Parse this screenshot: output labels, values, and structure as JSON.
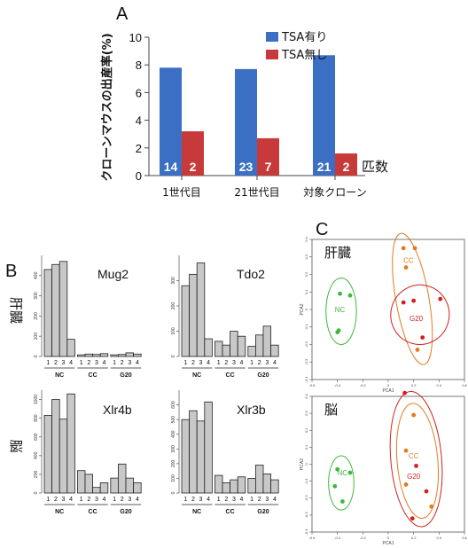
{
  "panel_labels": {
    "a": "A",
    "b": "B",
    "c": "C"
  },
  "row_labels": {
    "liver": "肝臓",
    "brain": "脳"
  },
  "chart_data": [
    {
      "id": "A",
      "type": "bar",
      "ylabel": "クローンマウスの出産率(%)",
      "ylim": [
        0,
        10
      ],
      "yticks": [
        "0",
        "2",
        "4",
        "6",
        "8",
        "10"
      ],
      "categories": [
        "1世代目",
        "21世代目",
        "対象クローン"
      ],
      "series": [
        {
          "name": "TSA有り",
          "color": "#3a6fc4",
          "values": [
            7.8,
            7.7,
            8.7
          ],
          "counts": [
            "14",
            "23",
            "21"
          ]
        },
        {
          "name": "TSA無し",
          "color": "#c83a3a",
          "values": [
            3.2,
            2.7,
            1.6
          ],
          "counts": [
            "2",
            "7",
            "2"
          ]
        }
      ],
      "count_label": "匹数"
    },
    {
      "id": "B",
      "type": "bar",
      "bar_color": "#c8c8c8",
      "group_labels": [
        "NC",
        "CC",
        "G20"
      ],
      "bar_ticks": [
        "1",
        "2",
        "3",
        "4"
      ],
      "panels": [
        {
          "gene": "Mug2",
          "ylim": [
            0,
            500
          ],
          "yticks": [
            "0",
            "100",
            "200",
            "300",
            "400"
          ],
          "values": [
            430,
            455,
            470,
            85,
            8,
            12,
            10,
            14,
            8,
            10,
            18,
            12
          ]
        },
        {
          "gene": "Tdo2",
          "ylim": [
            0,
            400
          ],
          "yticks": [
            "0",
            "100",
            "200",
            "300"
          ],
          "values": [
            280,
            325,
            370,
            70,
            60,
            45,
            100,
            80,
            40,
            85,
            120,
            45
          ]
        },
        {
          "gene": "Xlr4b",
          "ylim": [
            0,
            1100
          ],
          "yticks": [
            "0",
            "200",
            "400",
            "600",
            "800",
            "1000"
          ],
          "values": [
            830,
            1000,
            790,
            1060,
            240,
            200,
            60,
            110,
            160,
            310,
            160,
            110
          ]
        },
        {
          "gene": "Xlr3b",
          "ylim": [
            0,
            700
          ],
          "yticks": [
            "0",
            "100",
            "200",
            "300",
            "400",
            "500",
            "600"
          ],
          "values": [
            500,
            560,
            490,
            620,
            120,
            70,
            90,
            110,
            100,
            190,
            130,
            90
          ]
        }
      ]
    },
    {
      "id": "C",
      "type": "scatter",
      "xlabel": "PCA1",
      "ylabel": "PCA2",
      "xlim": [
        -0.6,
        0.6
      ],
      "xticks": [
        "-0.6",
        "-0.4",
        "-0.2",
        "0",
        "0.2",
        "0.4",
        "0.6"
      ],
      "ylim": [
        -0.4,
        0.4
      ],
      "yticks": [
        "-0.4",
        "-0.3",
        "-0.2",
        "-0.1",
        "0",
        "0.1",
        "0.2",
        "0.3",
        "0.4"
      ],
      "groups": [
        {
          "name": "NC",
          "color": "#3cb83c"
        },
        {
          "name": "CC",
          "color": "#e07c20"
        },
        {
          "name": "G20",
          "color": "#d02020"
        }
      ],
      "panels": [
        {
          "region": "liver",
          "points": {
            "NC": [
              [
                -0.38,
                0.09
              ],
              [
                -0.3,
                0.08
              ],
              [
                -0.4,
                -0.13
              ],
              [
                -0.39,
                -0.12
              ]
            ],
            "CC": [
              [
                0.12,
                0.35
              ],
              [
                0.21,
                0.35
              ],
              [
                0.14,
                0.24
              ],
              [
                0.23,
                -0.23
              ]
            ],
            "G20": [
              [
                0.12,
                0.04
              ],
              [
                0.2,
                0.05
              ],
              [
                0.41,
                0.06
              ],
              [
                0.27,
                -0.16
              ]
            ]
          }
        },
        {
          "region": "brain",
          "points": {
            "NC": [
              [
                -0.4,
                -0.03
              ],
              [
                -0.3,
                -0.05
              ],
              [
                -0.42,
                -0.13
              ],
              [
                -0.36,
                -0.22
              ]
            ],
            "CC": [
              [
                0.2,
                0.29
              ],
              [
                0.14,
                0.08
              ],
              [
                0.14,
                -0.12
              ],
              [
                0.34,
                -0.25
              ]
            ],
            "G20": [
              [
                0.13,
                0.42
              ],
              [
                0.22,
                -0.01
              ],
              [
                0.3,
                -0.16
              ],
              [
                0.19,
                -0.32
              ]
            ]
          }
        }
      ]
    }
  ]
}
